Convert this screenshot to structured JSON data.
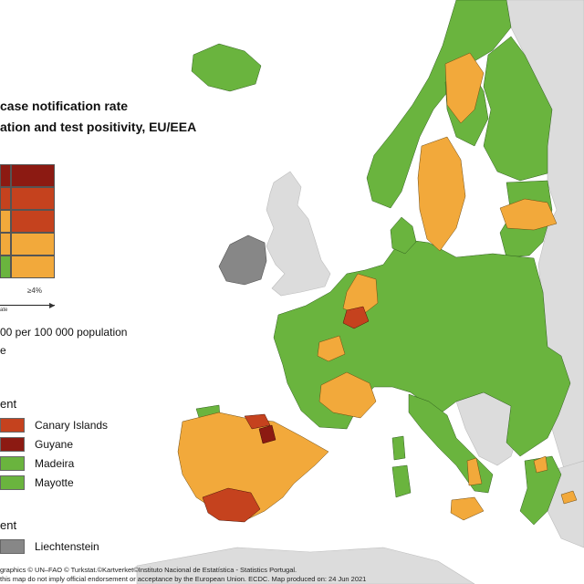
{
  "colors": {
    "sea": "#ffffff",
    "non_eu": "#dcdcdc",
    "green": "#6ab43e",
    "orange": "#f2a93b",
    "red": "#c5421e",
    "dark_red": "#8c1a12",
    "grey": "#878787",
    "border": "#555555"
  },
  "legend": {
    "title_line1": "case notification rate",
    "title_line2": "ation and test positivity, EU/EEA",
    "matrix_colors": [
      [
        "dark_red",
        "dark_red"
      ],
      [
        "red",
        "red"
      ],
      [
        "orange",
        "red"
      ],
      [
        "orange",
        "orange"
      ],
      [
        "green",
        "orange"
      ]
    ],
    "axis_tick": "≥4%",
    "axis_caption": "ate",
    "note1": "00 per 100 000 population",
    "note2": "e",
    "outermost_heading": "ent",
    "outermost": [
      {
        "label": "Canary Islands",
        "color": "red"
      },
      {
        "label": "Guyane",
        "color": "dark_red"
      },
      {
        "label": "Madeira",
        "color": "green"
      },
      {
        "label": "Mayotte",
        "color": "green"
      }
    ],
    "non_visible_heading": "ent",
    "non_visible": [
      {
        "label": "Liechtenstein",
        "color": "grey"
      }
    ]
  },
  "footer": {
    "line1": "graphics © UN–FAO © Turkstat.©Kartverket©Instituto Nacional de Estatística - Statistics Portugal.",
    "line2": "this map do not imply official endorsement or acceptance by the European Union. ECDC. Map produced on: 24 Jun 2021"
  }
}
